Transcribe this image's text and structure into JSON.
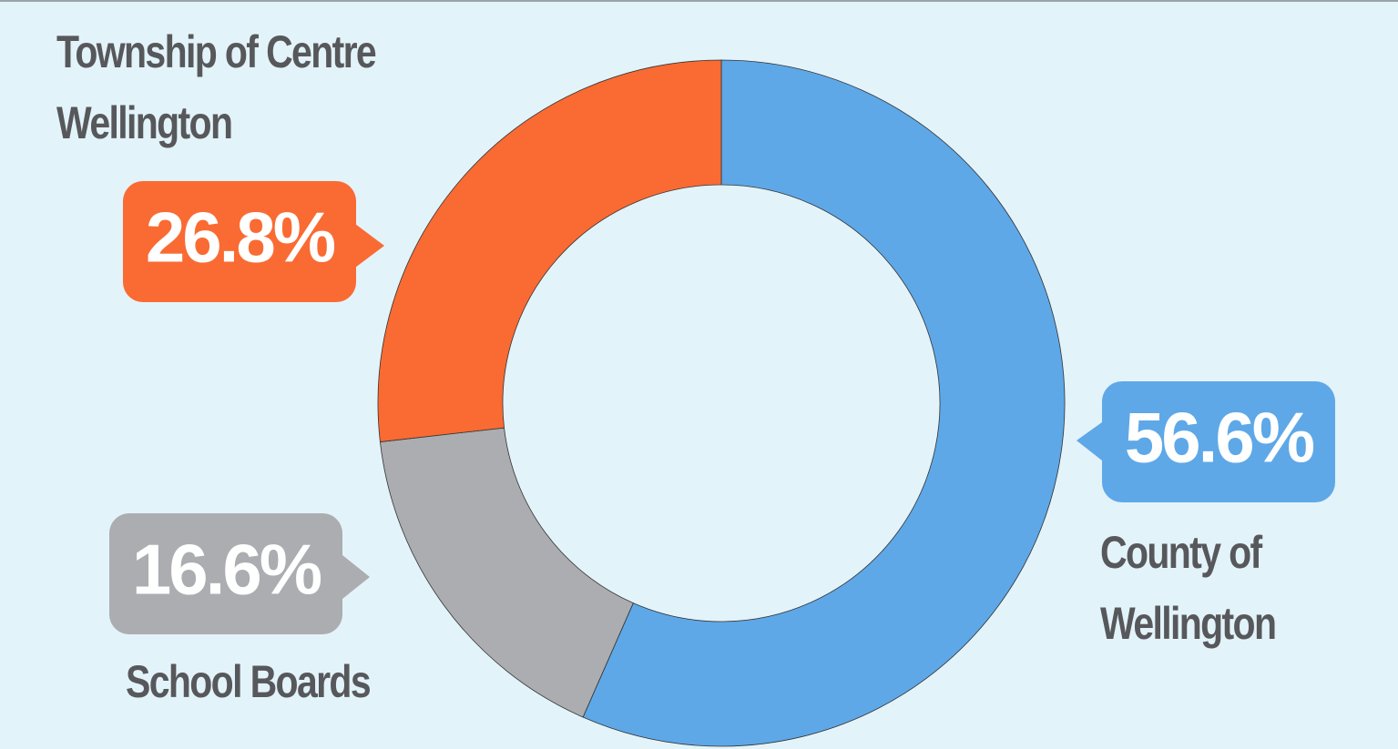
{
  "chart_data": {
    "type": "donut",
    "categories": [
      "County of Wellington",
      "School Boards",
      "Township of Centre Wellington"
    ],
    "values": [
      56.6,
      16.6,
      26.8
    ],
    "value_labels": [
      "56.6%",
      "16.6%",
      "26.8%"
    ],
    "colors": [
      "#5ea8e8",
      "#abadb0",
      "#f96b33"
    ]
  }
}
